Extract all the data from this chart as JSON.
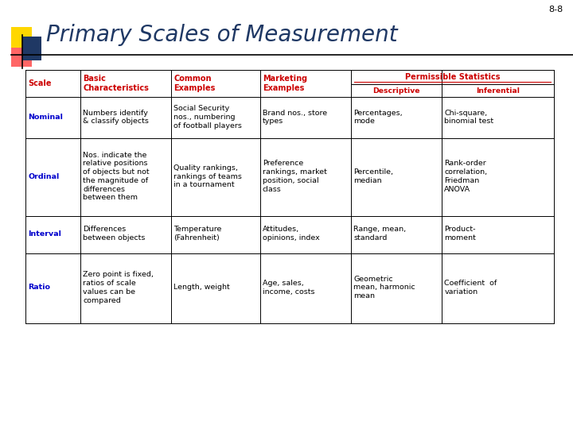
{
  "slide_number": "8-8",
  "title": "Primary Scales of Measurement",
  "title_color": "#1F3864",
  "title_fontsize": 20,
  "bg_color": "#FFFFFF",
  "table": {
    "rows": [
      {
        "scale": "Nominal",
        "basic": "Numbers identify\n& classify objects",
        "common": "Social Security\nnos., numbering\nof football players",
        "marketing": "Brand nos., store\ntypes",
        "descriptive": "Percentages,\nmode",
        "inferential": "Chi-square,\nbinomial test"
      },
      {
        "scale": "Ordinal",
        "basic": "Nos. indicate the\nrelative positions\nof objects but not\nthe magnitude of\ndifferences\nbetween them",
        "common": "Quality rankings,\nrankings of teams\nin a tournament",
        "marketing": "Preference\nrankings, market\nposition, social\nclass",
        "descriptive": "Percentile,\nmedian",
        "inferential": "Rank-order\ncorrelation,\nFriedman\nANOVA"
      },
      {
        "scale": "Interval",
        "basic": "Differences\nbetween objects",
        "common": "Temperature\n(Fahrenheit)",
        "marketing": "Attitudes,\nopinions, index",
        "descriptive": "Range, mean,\nstandard",
        "inferential": "Product-\nmoment"
      },
      {
        "scale": "Ratio",
        "basic": "Zero point is fixed,\nratios of scale\nvalues can be\ncompared",
        "common": "Length, weight",
        "marketing": "Age, sales,\nincome, costs",
        "descriptive": "Geometric\nmean, harmonic\nmean",
        "inferential": "Coefficient  of\nvariation"
      }
    ],
    "scale_color": "#0000CC",
    "body_color": "#000000",
    "header_color": "#CC0000",
    "line_color": "#000000"
  },
  "logo_colors": {
    "yellow": "#FFD700",
    "red": "#FF6666",
    "blue": "#1F3864"
  }
}
